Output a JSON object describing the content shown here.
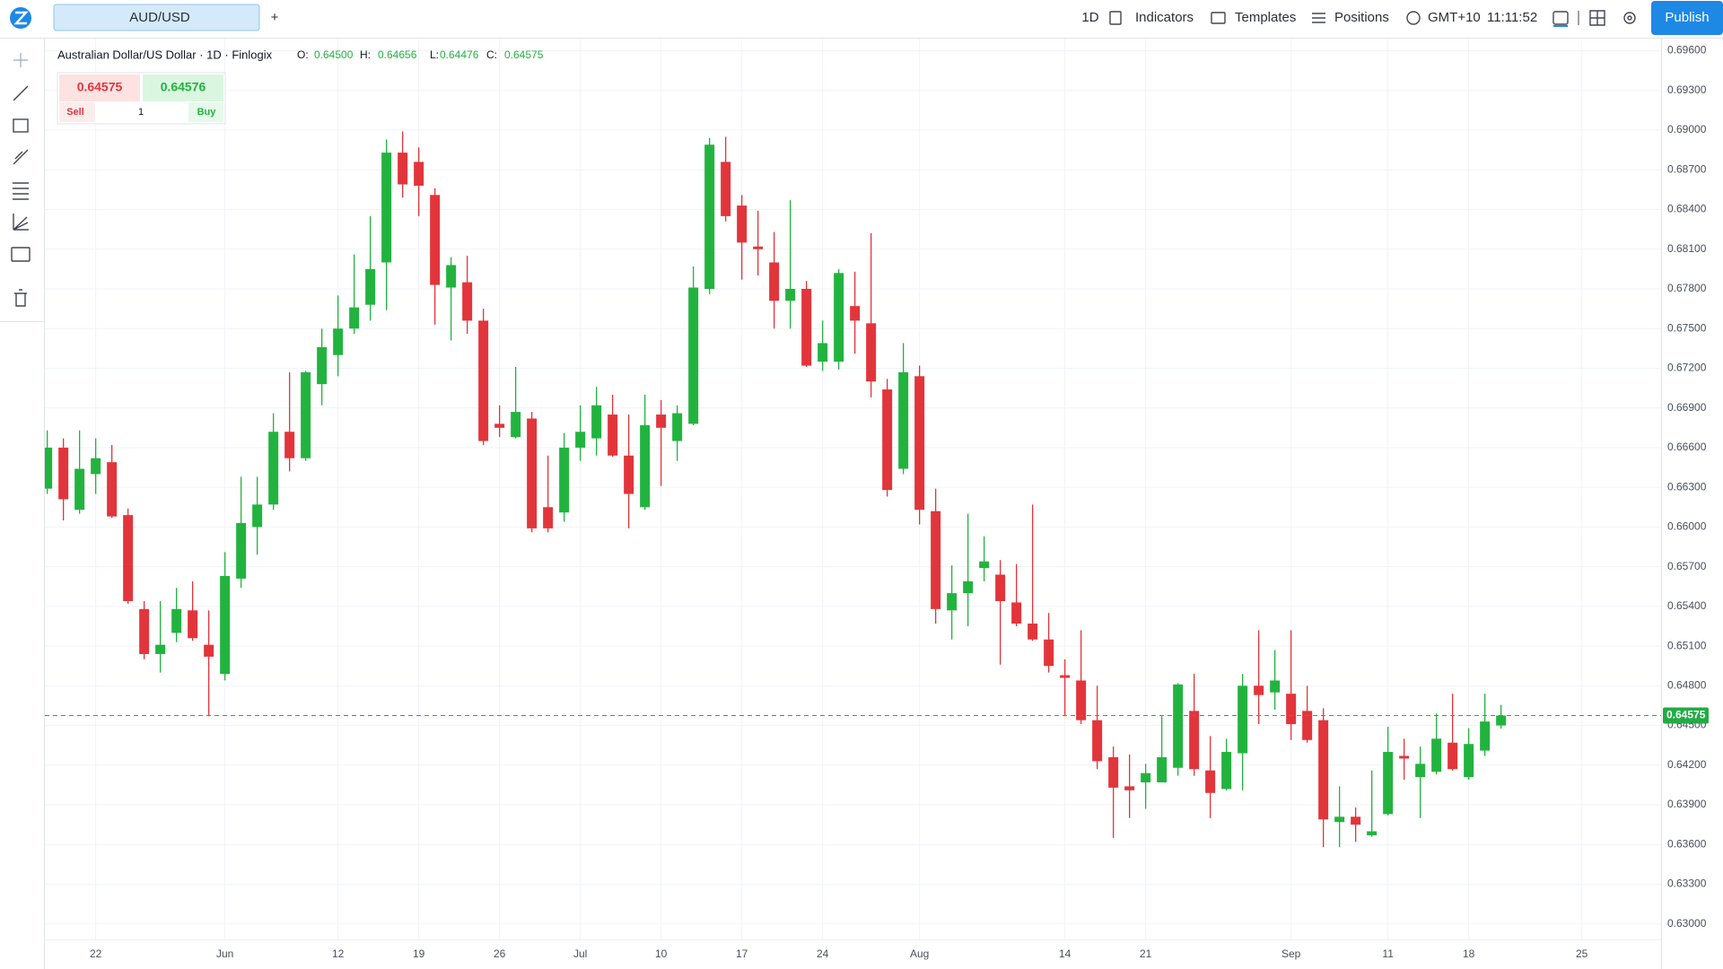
{
  "toolbar": {
    "tab": "AUD/USD",
    "add": "+",
    "interval": "1D",
    "indicators": "Indicators",
    "templates": "Templates",
    "positions": "Positions",
    "timezone": "GMT+10",
    "clock": "11:11:52",
    "publish": "Publish"
  },
  "legend": {
    "symbol": "Australian Dollar/US Dollar · 1D · Finlogix",
    "o_label": "O:",
    "o": "0.64500",
    "h_label": "H:",
    "h": "0.64656",
    "l_label": "L:",
    "l": "0.64476",
    "c_label": "C:",
    "c": "0.64575"
  },
  "trade": {
    "sell_price": "0.64575",
    "buy_price": "0.64576",
    "sell": "Sell",
    "quantity": "1",
    "buy": "Buy"
  },
  "chart_data": {
    "type": "candlestick",
    "categories": [
      null,
      null,
      null,
      "22",
      null,
      null,
      null,
      null,
      null,
      null,
      null,
      "Jun",
      null,
      null,
      null,
      null,
      null,
      null,
      "12",
      null,
      null,
      null,
      null,
      "19",
      null,
      null,
      null,
      null,
      "26",
      null,
      null,
      null,
      null,
      "Jul",
      null,
      null,
      null,
      null,
      "10",
      null,
      null,
      null,
      null,
      "17",
      null,
      null,
      null,
      null,
      "24",
      null,
      null,
      null,
      null,
      null,
      "Aug",
      null,
      null,
      null,
      null,
      null,
      null,
      null,
      null,
      "14",
      null,
      null,
      null,
      null,
      "21",
      null,
      null,
      null,
      null,
      null,
      null,
      null,
      null,
      "Sep",
      null,
      null,
      null,
      null,
      null,
      "11",
      null,
      null,
      null,
      null,
      "18",
      null,
      null,
      null,
      null,
      null,
      null,
      "25"
    ],
    "open": [
      0.6629,
      0.666,
      0.6613,
      0.664,
      0.6649,
      0.6609,
      0.6538,
      0.6504,
      0.652,
      0.6537,
      0.6511,
      0.6489,
      0.6561,
      0.66,
      0.6617,
      0.6672,
      0.6652,
      0.6708,
      0.673,
      0.675,
      0.6768,
      0.68,
      0.6883,
      0.6876,
      0.6851,
      0.6781,
      0.6785,
      0.6756,
      0.6678,
      0.6668,
      0.6682,
      0.6615,
      0.6611,
      0.666,
      0.6667,
      0.6685,
      0.6654,
      0.6615,
      0.6685,
      0.6665,
      0.6678,
      0.678,
      0.6876,
      0.6843,
      0.6812,
      0.68,
      0.6771,
      0.678,
      0.6725,
      0.6725,
      0.6767,
      0.6754,
      0.6704,
      0.6644,
      0.6714,
      0.6612,
      0.6537,
      0.655,
      0.6569,
      0.6564,
      0.6543,
      0.6527,
      0.6515,
      0.6488,
      0.6484,
      0.6454,
      0.6426,
      0.6404,
      0.6407,
      0.6407,
      0.6418,
      0.6461,
      0.6416,
      0.6402,
      0.6429,
      0.648,
      0.6475,
      0.6474,
      0.6461,
      0.6454,
      0.6377,
      0.6381,
      0.6367,
      0.6383,
      0.6427,
      0.6411,
      0.6415,
      0.6437,
      0.6411,
      0.6431,
      0.645,
      null,
      null,
      null,
      null,
      null
    ],
    "high": [
      0.6673,
      0.6667,
      0.6673,
      0.6667,
      0.6662,
      0.6614,
      0.6544,
      0.6544,
      0.6554,
      0.6559,
      0.6537,
      0.6581,
      0.6638,
      0.6638,
      0.6686,
      0.6717,
      0.6718,
      0.675,
      0.6775,
      0.6806,
      0.6835,
      0.6893,
      0.6899,
      0.6887,
      0.6856,
      0.6804,
      0.6805,
      0.6765,
      0.6692,
      0.6721,
      0.6687,
      0.6654,
      0.6671,
      0.6692,
      0.6706,
      0.67,
      0.6685,
      0.67,
      0.6696,
      0.6692,
      0.6797,
      0.6894,
      0.6895,
      0.6851,
      0.6839,
      0.6823,
      0.6847,
      0.6786,
      0.6756,
      0.6795,
      0.6793,
      0.6822,
      0.6712,
      0.6739,
      0.6722,
      0.6629,
      0.6571,
      0.661,
      0.6593,
      0.6575,
      0.6572,
      0.6617,
      0.6535,
      0.65,
      0.6522,
      0.648,
      0.6434,
      0.6428,
      0.6421,
      0.6457,
      0.6482,
      0.6489,
      0.6442,
      0.644,
      0.6489,
      0.6522,
      0.6507,
      0.6522,
      0.648,
      0.6463,
      0.6404,
      0.6388,
      0.6416,
      0.6449,
      0.644,
      0.6434,
      0.6459,
      0.6474,
      0.6448,
      0.6474,
      0.64656,
      null,
      null,
      null,
      null,
      null
    ],
    "low": [
      0.6625,
      0.6605,
      0.661,
      0.6625,
      0.6607,
      0.6542,
      0.65,
      0.649,
      0.6513,
      0.6514,
      0.6457,
      0.6484,
      0.6554,
      0.6579,
      0.6613,
      0.6642,
      0.665,
      0.6692,
      0.6714,
      0.6746,
      0.6756,
      0.6764,
      0.6849,
      0.6835,
      0.6753,
      0.6741,
      0.6746,
      0.6662,
      0.6668,
      0.6667,
      0.6596,
      0.6596,
      0.6604,
      0.665,
      0.6654,
      0.6653,
      0.6599,
      0.6613,
      0.6631,
      0.665,
      0.6677,
      0.6776,
      0.6831,
      0.6787,
      0.679,
      0.675,
      0.675,
      0.6721,
      0.6718,
      0.6719,
      0.6731,
      0.6698,
      0.6623,
      0.664,
      0.6602,
      0.6527,
      0.6515,
      0.6525,
      0.6559,
      0.6496,
      0.6525,
      0.6514,
      0.649,
      0.6457,
      0.6451,
      0.6417,
      0.6365,
      0.638,
      0.6387,
      0.6407,
      0.6412,
      0.6412,
      0.638,
      0.6401,
      0.6401,
      0.6451,
      0.6462,
      0.6439,
      0.6437,
      0.6358,
      0.6358,
      0.6362,
      0.6366,
      0.6382,
      0.6409,
      0.638,
      0.6413,
      0.6416,
      0.6409,
      0.6427,
      0.64476,
      null,
      null,
      null,
      null,
      null
    ],
    "close": [
      0.666,
      0.6621,
      0.6644,
      0.6652,
      0.6608,
      0.6544,
      0.6504,
      0.6511,
      0.6538,
      0.6516,
      0.6502,
      0.6563,
      0.6603,
      0.6617,
      0.6672,
      0.6652,
      0.6717,
      0.6736,
      0.675,
      0.6766,
      0.6795,
      0.6883,
      0.6859,
      0.6858,
      0.6783,
      0.6798,
      0.6756,
      0.6665,
      0.6675,
      0.6687,
      0.6599,
      0.6599,
      0.666,
      0.6672,
      0.6692,
      0.6654,
      0.6625,
      0.6677,
      0.6675,
      0.6686,
      0.6781,
      0.6889,
      0.6835,
      0.6815,
      0.681,
      0.6771,
      0.678,
      0.6722,
      0.6739,
      0.6792,
      0.6756,
      0.671,
      0.6628,
      0.6717,
      0.6613,
      0.6538,
      0.655,
      0.6559,
      0.6574,
      0.6544,
      0.6527,
      0.6515,
      0.6495,
      0.6486,
      0.6454,
      0.6423,
      0.6403,
      0.6401,
      0.6414,
      0.6426,
      0.6481,
      0.6417,
      0.6399,
      0.643,
      0.648,
      0.6473,
      0.6484,
      0.6451,
      0.6439,
      0.6379,
      0.6381,
      0.6375,
      0.637,
      0.643,
      0.6425,
      0.6421,
      0.644,
      0.6417,
      0.6436,
      0.6453,
      0.64575,
      null,
      null,
      null,
      null,
      null
    ],
    "up_color": "#22b33f",
    "down_color": "#e1353b",
    "ylim": [
      0.62883,
      0.69692
    ],
    "yticks": [
      {
        "value": 0.696,
        "label": "0.69600"
      },
      {
        "value": 0.693,
        "label": "0.69300"
      },
      {
        "value": 0.69,
        "label": "0.69000"
      },
      {
        "value": 0.687,
        "label": "0.68700"
      },
      {
        "value": 0.684,
        "label": "0.68400"
      },
      {
        "value": 0.681,
        "label": "0.68100"
      },
      {
        "value": 0.678,
        "label": "0.67800"
      },
      {
        "value": 0.675,
        "label": "0.67500"
      },
      {
        "value": 0.672,
        "label": "0.67200"
      },
      {
        "value": 0.669,
        "label": "0.66900"
      },
      {
        "value": 0.666,
        "label": "0.66600"
      },
      {
        "value": 0.663,
        "label": "0.66300"
      },
      {
        "value": 0.66,
        "label": "0.66000"
      },
      {
        "value": 0.657,
        "label": "0.65700"
      },
      {
        "value": 0.654,
        "label": "0.65400"
      },
      {
        "value": 0.651,
        "label": "0.65100"
      },
      {
        "value": 0.648,
        "label": "0.64800"
      },
      {
        "value": 0.645,
        "label": "0.64500"
      },
      {
        "value": 0.642,
        "label": "0.64200"
      },
      {
        "value": 0.639,
        "label": "0.63900"
      },
      {
        "value": 0.636,
        "label": "0.63600"
      },
      {
        "value": 0.633,
        "label": "0.63300"
      },
      {
        "value": 0.63,
        "label": "0.63000"
      }
    ],
    "grid": true,
    "last_price": {
      "value": 0.64575,
      "label": "0.64575"
    },
    "last_price_color": "#22ab45"
  }
}
